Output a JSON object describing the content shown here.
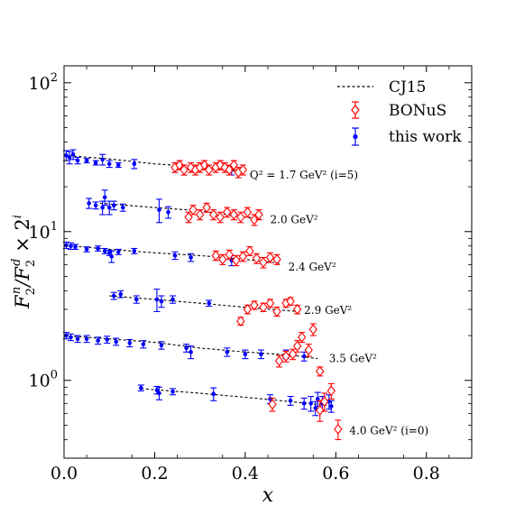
{
  "chart_data": {
    "type": "scatter",
    "title": "",
    "xlabel": "x",
    "ylabel_parts": [
      "F",
      "2",
      "n",
      "/F",
      "2",
      "d",
      " × 2",
      "i"
    ],
    "x_ticks": [
      "0.0",
      "0.2",
      "0.4",
      "0.6",
      "0.8"
    ],
    "y_ticks": [
      {
        "value": 1,
        "base": "10",
        "exp": "0"
      },
      {
        "value": 10,
        "base": "10",
        "exp": "1"
      },
      {
        "value": 100,
        "base": "10",
        "exp": "2"
      }
    ],
    "xlim": [
      0,
      0.9
    ],
    "ylim": [
      0.3,
      130
    ],
    "yscale": "log",
    "legend_position": "top-right",
    "legend": [
      {
        "label": "CJ15",
        "style": "dashed-line"
      },
      {
        "label": "BONuS",
        "style": "open-diamond-errorbar",
        "color": "#ff0000"
      },
      {
        "label": "this work",
        "style": "dot-errorbar",
        "color": "#0000ff"
      }
    ],
    "annotations": [
      {
        "text": "Q² = 1.7 GeV² (i=5)",
        "x": 0.41,
        "y": 24
      },
      {
        "text": "2.0 GeV²",
        "x": 0.455,
        "y": 12
      },
      {
        "text": "2.4 GeV²",
        "x": 0.495,
        "y": 5.8
      },
      {
        "text": "2.9 GeV²",
        "x": 0.53,
        "y": 2.95
      },
      {
        "text": "3.5 GeV²",
        "x": 0.585,
        "y": 1.4
      },
      {
        "text": "4.0 GeV² (i=0)",
        "x": 0.63,
        "y": 0.46
      }
    ],
    "series": [
      {
        "name": "CJ15",
        "curves": [
          [
            [
              0.0,
              32.5
            ],
            [
              0.1,
              30.8
            ],
            [
              0.2,
              28.5
            ],
            [
              0.3,
              27.2
            ],
            [
              0.4,
              25.0
            ]
          ],
          [
            [
              0.08,
              15.5
            ],
            [
              0.2,
              14.5
            ],
            [
              0.3,
              13.8
            ],
            [
              0.44,
              12.0
            ]
          ],
          [
            [
              0.0,
              8.1
            ],
            [
              0.1,
              7.6
            ],
            [
              0.2,
              7.2
            ],
            [
              0.3,
              6.9
            ],
            [
              0.4,
              6.5
            ],
            [
              0.48,
              6.1
            ]
          ],
          [
            [
              0.1,
              3.7
            ],
            [
              0.2,
              3.5
            ],
            [
              0.3,
              3.3
            ],
            [
              0.4,
              3.1
            ],
            [
              0.52,
              2.9
            ]
          ],
          [
            [
              0.0,
              2.0
            ],
            [
              0.1,
              1.9
            ],
            [
              0.2,
              1.8
            ],
            [
              0.3,
              1.65
            ],
            [
              0.4,
              1.55
            ],
            [
              0.5,
              1.48
            ],
            [
              0.56,
              1.4
            ]
          ],
          [
            [
              0.17,
              0.88
            ],
            [
              0.3,
              0.82
            ],
            [
              0.4,
              0.77
            ],
            [
              0.5,
              0.72
            ],
            [
              0.58,
              0.68
            ]
          ]
        ]
      },
      {
        "name": "BONuS",
        "points": [
          [
            0.245,
            27,
            2
          ],
          [
            0.255,
            28,
            2
          ],
          [
            0.265,
            26,
            2
          ],
          [
            0.28,
            27,
            2
          ],
          [
            0.29,
            26,
            2
          ],
          [
            0.3,
            27,
            2
          ],
          [
            0.31,
            28,
            2
          ],
          [
            0.32,
            26,
            2
          ],
          [
            0.335,
            27,
            2
          ],
          [
            0.345,
            28,
            2
          ],
          [
            0.355,
            27,
            2
          ],
          [
            0.365,
            26,
            2
          ],
          [
            0.375,
            28,
            2
          ],
          [
            0.385,
            25,
            2
          ],
          [
            0.395,
            26,
            2
          ],
          [
            0.275,
            12.5,
            1
          ],
          [
            0.285,
            14.0,
            1
          ],
          [
            0.3,
            13.0,
            1
          ],
          [
            0.315,
            14.5,
            1
          ],
          [
            0.33,
            13.0,
            1
          ],
          [
            0.345,
            12.5,
            1
          ],
          [
            0.36,
            13.5,
            1
          ],
          [
            0.375,
            13.0,
            1
          ],
          [
            0.39,
            12.5,
            1
          ],
          [
            0.405,
            13.5,
            1
          ],
          [
            0.42,
            12.0,
            1
          ],
          [
            0.43,
            13.0,
            1
          ],
          [
            0.335,
            6.9,
            0.5
          ],
          [
            0.35,
            6.5,
            0.5
          ],
          [
            0.365,
            7.0,
            0.5
          ],
          [
            0.38,
            6.4,
            0.5
          ],
          [
            0.395,
            6.8,
            0.5
          ],
          [
            0.41,
            7.4,
            0.5
          ],
          [
            0.425,
            6.6,
            0.5
          ],
          [
            0.44,
            6.2,
            0.5
          ],
          [
            0.455,
            6.7,
            0.5
          ],
          [
            0.47,
            6.5,
            0.5
          ],
          [
            0.39,
            2.5,
            0.15
          ],
          [
            0.405,
            3.0,
            0.2
          ],
          [
            0.42,
            3.2,
            0.2
          ],
          [
            0.44,
            3.1,
            0.2
          ],
          [
            0.455,
            3.3,
            0.2
          ],
          [
            0.47,
            2.9,
            0.2
          ],
          [
            0.49,
            3.3,
            0.2
          ],
          [
            0.5,
            3.4,
            0.2
          ],
          [
            0.515,
            3.0,
            0.2
          ],
          [
            0.475,
            1.35,
            0.12
          ],
          [
            0.49,
            1.45,
            0.12
          ],
          [
            0.505,
            1.5,
            0.12
          ],
          [
            0.515,
            1.7,
            0.15
          ],
          [
            0.525,
            1.95,
            0.15
          ],
          [
            0.54,
            1.6,
            0.15
          ],
          [
            0.55,
            2.2,
            0.2
          ],
          [
            0.565,
            1.15,
            0.08
          ],
          [
            0.46,
            0.69,
            0.07
          ],
          [
            0.565,
            0.63,
            0.1
          ],
          [
            0.575,
            0.72,
            0.1
          ],
          [
            0.59,
            0.85,
            0.1
          ],
          [
            0.605,
            0.47,
            0.07
          ]
        ]
      },
      {
        "name": "this work",
        "points": [
          [
            0.005,
            32.5,
            2.5
          ],
          [
            0.012,
            31.5,
            3
          ],
          [
            0.02,
            33,
            2.5
          ],
          [
            0.03,
            30,
            1.5
          ],
          [
            0.05,
            30,
            1
          ],
          [
            0.07,
            29,
            1
          ],
          [
            0.085,
            30.5,
            2.5
          ],
          [
            0.1,
            28.5,
            1.5
          ],
          [
            0.12,
            28,
            1
          ],
          [
            0.155,
            28.5,
            2
          ],
          [
            0.245,
            27,
            2
          ],
          [
            0.265,
            26,
            2
          ],
          [
            0.37,
            26,
            2
          ],
          [
            0.055,
            15.5,
            1.2
          ],
          [
            0.07,
            15.0,
            0.8
          ],
          [
            0.085,
            14.5,
            1.5
          ],
          [
            0.09,
            17.0,
            2
          ],
          [
            0.1,
            14.5,
            1.5
          ],
          [
            0.11,
            15.0,
            1
          ],
          [
            0.13,
            14.5,
            0.8
          ],
          [
            0.21,
            14.0,
            2.5
          ],
          [
            0.23,
            13.5,
            1.2
          ],
          [
            0.005,
            8.1,
            0.4
          ],
          [
            0.015,
            8.0,
            0.4
          ],
          [
            0.025,
            7.9,
            0.3
          ],
          [
            0.05,
            7.6,
            0.3
          ],
          [
            0.075,
            7.7,
            0.3
          ],
          [
            0.09,
            7.4,
            0.3
          ],
          [
            0.1,
            7.2,
            0.3
          ],
          [
            0.105,
            6.8,
            0.6
          ],
          [
            0.12,
            7.3,
            0.3
          ],
          [
            0.155,
            7.4,
            0.3
          ],
          [
            0.245,
            6.9,
            0.4
          ],
          [
            0.28,
            6.7,
            0.4
          ],
          [
            0.37,
            6.4,
            0.5
          ],
          [
            0.11,
            3.7,
            0.2
          ],
          [
            0.125,
            3.8,
            0.2
          ],
          [
            0.16,
            3.5,
            0.2
          ],
          [
            0.205,
            3.5,
            0.6
          ],
          [
            0.215,
            3.4,
            0.3
          ],
          [
            0.24,
            3.5,
            0.2
          ],
          [
            0.32,
            3.3,
            0.15
          ],
          [
            0.005,
            2.0,
            0.1
          ],
          [
            0.015,
            1.95,
            0.1
          ],
          [
            0.03,
            1.9,
            0.1
          ],
          [
            0.05,
            1.9,
            0.1
          ],
          [
            0.075,
            1.85,
            0.1
          ],
          [
            0.095,
            1.88,
            0.1
          ],
          [
            0.115,
            1.82,
            0.1
          ],
          [
            0.145,
            1.78,
            0.1
          ],
          [
            0.175,
            1.75,
            0.1
          ],
          [
            0.215,
            1.72,
            0.1
          ],
          [
            0.27,
            1.65,
            0.1
          ],
          [
            0.28,
            1.55,
            0.15
          ],
          [
            0.36,
            1.55,
            0.1
          ],
          [
            0.4,
            1.5,
            0.1
          ],
          [
            0.435,
            1.5,
            0.1
          ],
          [
            0.49,
            1.5,
            0.1
          ],
          [
            0.53,
            1.45,
            0.1
          ],
          [
            0.17,
            0.89,
            0.04
          ],
          [
            0.205,
            0.86,
            0.05
          ],
          [
            0.21,
            0.82,
            0.08
          ],
          [
            0.24,
            0.84,
            0.04
          ],
          [
            0.33,
            0.81,
            0.08
          ],
          [
            0.455,
            0.75,
            0.05
          ],
          [
            0.5,
            0.73,
            0.05
          ],
          [
            0.53,
            0.7,
            0.06
          ],
          [
            0.545,
            0.7,
            0.08
          ],
          [
            0.555,
            0.65,
            0.07
          ],
          [
            0.56,
            0.75,
            0.08
          ],
          [
            0.57,
            0.7,
            0.08
          ],
          [
            0.585,
            0.72,
            0.08
          ],
          [
            0.59,
            0.67,
            0.06
          ]
        ]
      }
    ]
  }
}
